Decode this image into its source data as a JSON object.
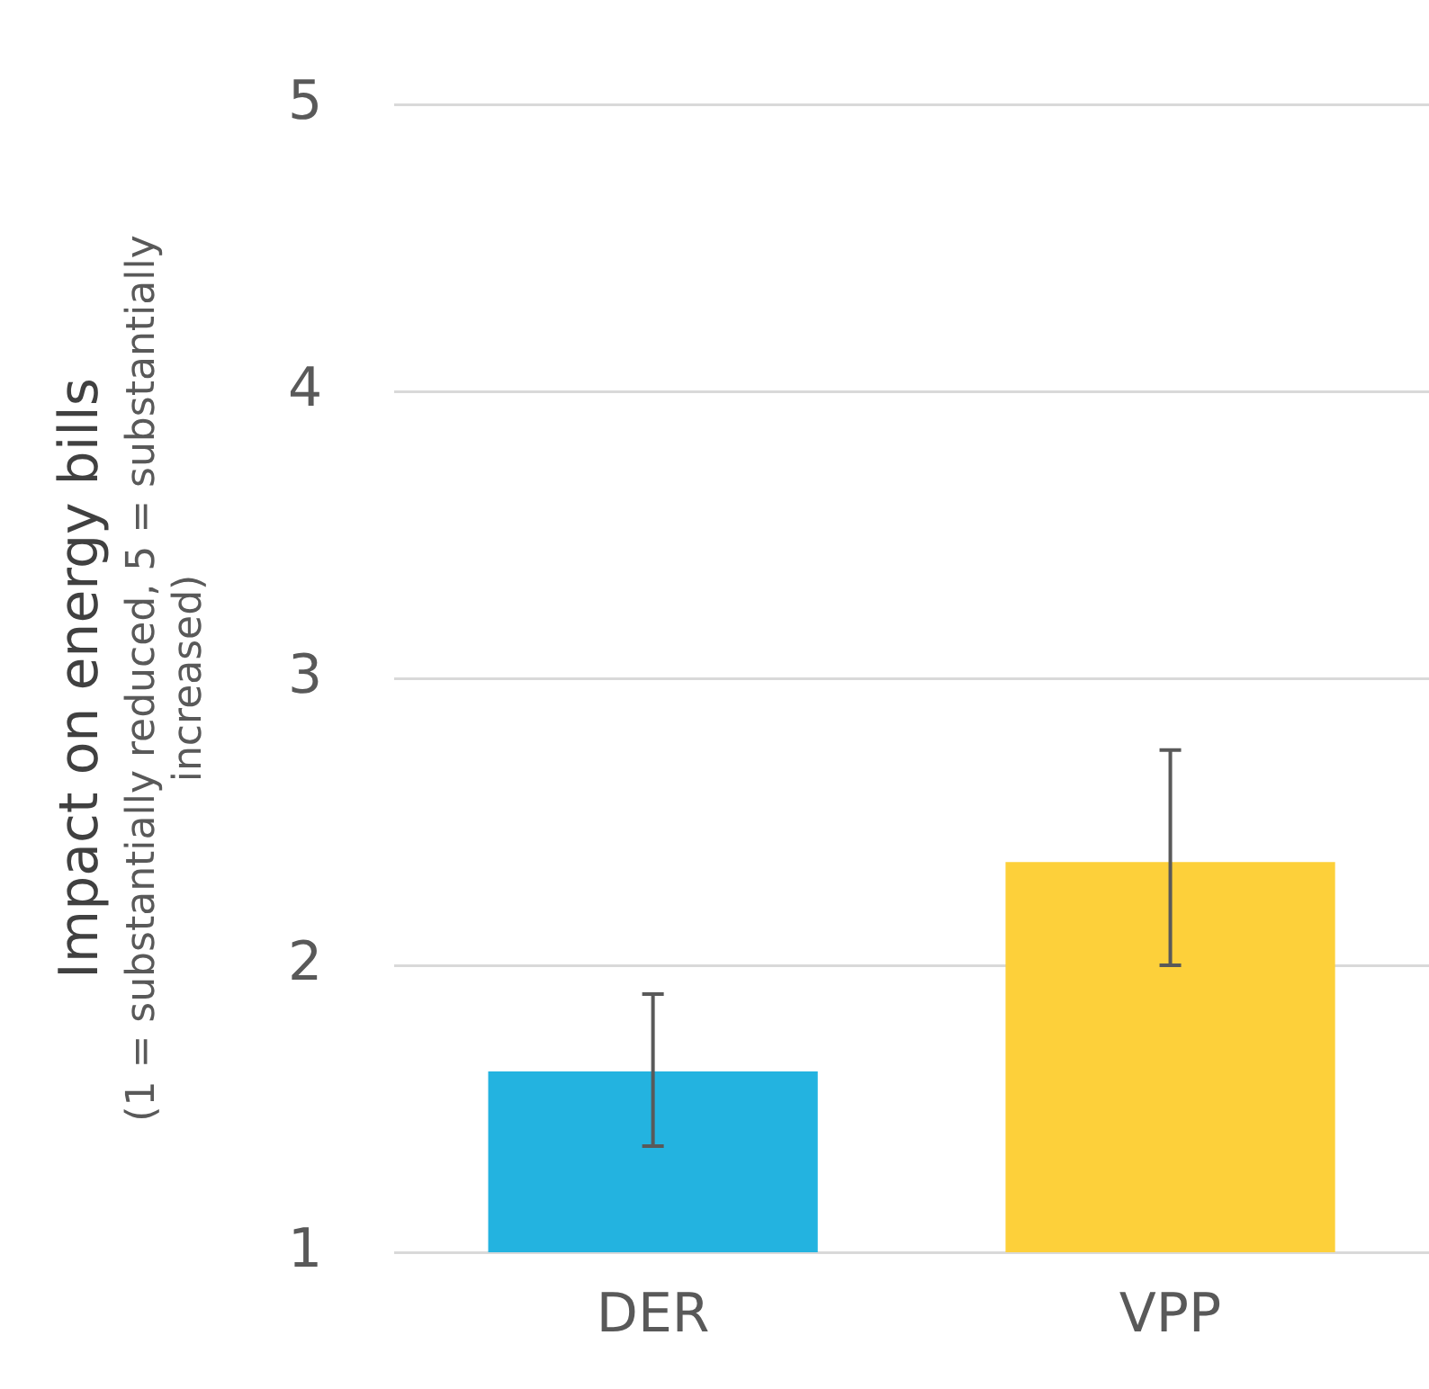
{
  "chart_data": {
    "type": "bar",
    "ylabel": "Impact on energy bills\n(1 = substantially reduced, 5 = substantially\nincreased)",
    "categories": [
      "DER",
      "VPP"
    ],
    "values": [
      1.63,
      2.36
    ],
    "colors": [
      "#23b3e0",
      "#fdd03a"
    ],
    "errors": [
      [
        1.37,
        1.9
      ],
      [
        2.0,
        2.75
      ]
    ],
    "ylim": [
      1,
      5
    ],
    "yticks": [
      1,
      2,
      3,
      4,
      5
    ],
    "grid": "y",
    "legend": false
  }
}
